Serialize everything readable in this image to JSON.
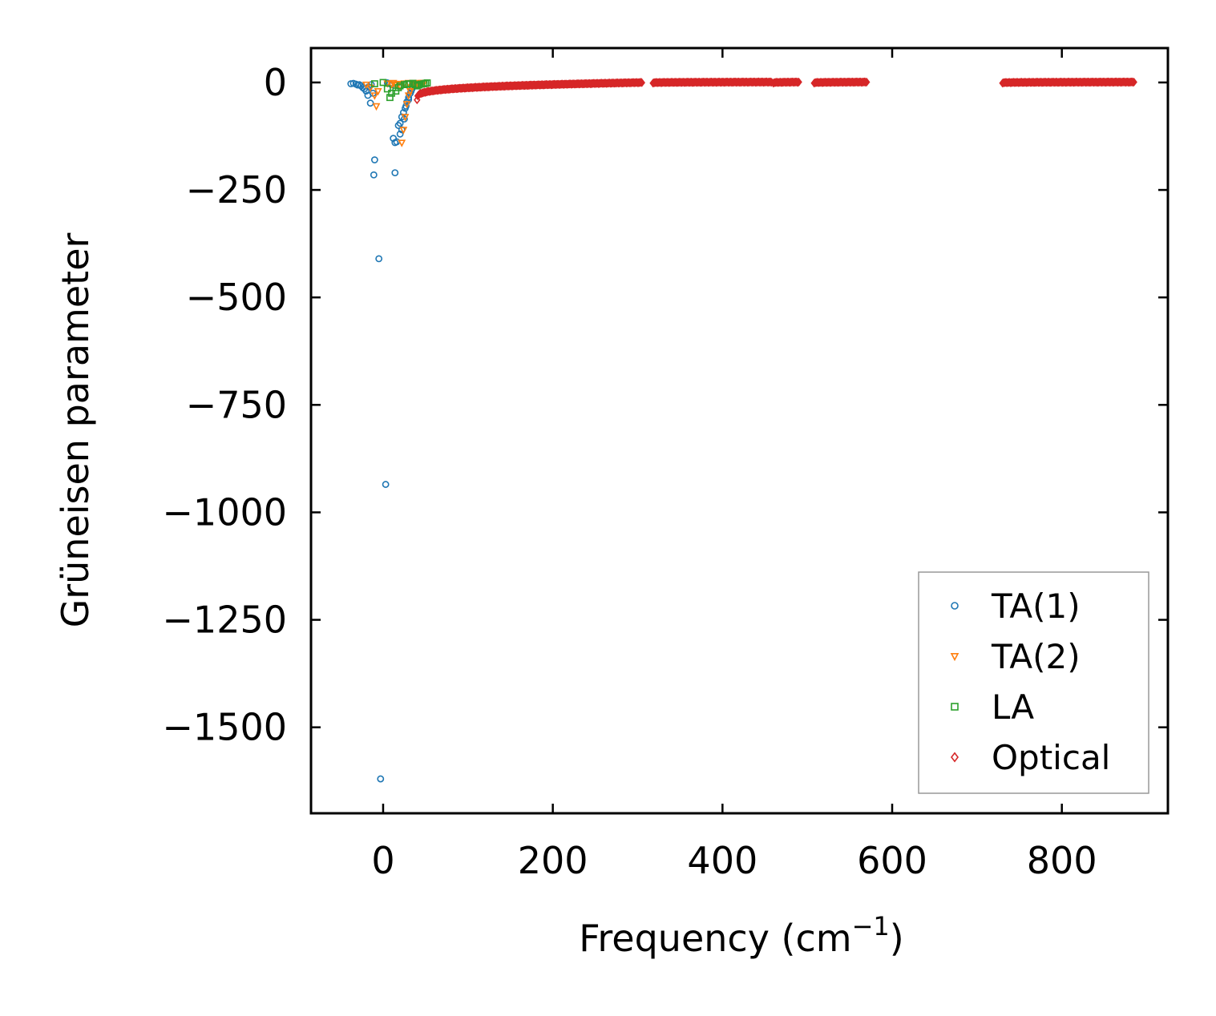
{
  "chart_data": {
    "type": "scatter",
    "title": "",
    "xlabel": "Frequency (cm",
    "xlabel_sup": "−1",
    "xlabel_close": ")",
    "ylabel": "Grüneisen parameter",
    "xlim": [
      -85,
      925
    ],
    "ylim": [
      -1700,
      80
    ],
    "x_ticks": [
      0,
      200,
      400,
      600,
      800
    ],
    "x_tick_labels": [
      "0",
      "200",
      "400",
      "600",
      "800"
    ],
    "y_ticks": [
      0,
      -250,
      -500,
      -750,
      -1000,
      -1250,
      -1500
    ],
    "y_tick_labels": [
      "0",
      "−250",
      "−500",
      "−750",
      "−1000",
      "−1250",
      "−1500"
    ],
    "grid": false,
    "legend_position": "bottom-right",
    "series": [
      {
        "name": "TA(1)",
        "marker": "circle",
        "color": "#1f77b4",
        "points": [
          [
            -38,
            -3
          ],
          [
            -35,
            -2
          ],
          [
            -32,
            -4
          ],
          [
            -30,
            -6
          ],
          [
            -28,
            -5
          ],
          [
            -26,
            -8
          ],
          [
            -24,
            -12
          ],
          [
            -22,
            -15
          ],
          [
            -20,
            -20
          ],
          [
            -18,
            -30
          ],
          [
            -17,
            -10
          ],
          [
            -15,
            -48
          ],
          [
            -14,
            -5
          ],
          [
            -12,
            -25
          ],
          [
            -10,
            -180
          ],
          [
            -11,
            -215
          ],
          [
            -5,
            -410
          ],
          [
            -3,
            -1620
          ],
          [
            3,
            -935
          ],
          [
            14,
            -210
          ],
          [
            12,
            -130
          ],
          [
            14,
            -140
          ],
          [
            16,
            -138
          ],
          [
            18,
            -100
          ],
          [
            20,
            -95
          ],
          [
            22,
            -80
          ],
          [
            24,
            -70
          ],
          [
            26,
            -60
          ],
          [
            28,
            -45
          ],
          [
            30,
            -35
          ],
          [
            32,
            -25
          ],
          [
            34,
            -15
          ],
          [
            35,
            -8
          ],
          [
            36,
            -4
          ],
          [
            38,
            -2
          ],
          [
            20,
            -120
          ],
          [
            22,
            -110
          ],
          [
            25,
            -85
          ],
          [
            27,
            -55
          ],
          [
            30,
            -40
          ],
          [
            33,
            -20
          ],
          [
            10,
            -5
          ],
          [
            8,
            -3
          ],
          [
            5,
            -1
          ]
        ]
      },
      {
        "name": "TA(2)",
        "marker": "triangle-down",
        "color": "#ff7f0e",
        "points": [
          [
            -20,
            -5
          ],
          [
            -15,
            -12
          ],
          [
            -10,
            -30
          ],
          [
            -8,
            -55
          ],
          [
            -6,
            -20
          ],
          [
            5,
            -2
          ],
          [
            10,
            -4
          ],
          [
            15,
            -6
          ],
          [
            18,
            -3
          ],
          [
            20,
            -8
          ],
          [
            22,
            -140
          ],
          [
            24,
            -110
          ],
          [
            26,
            -80
          ],
          [
            28,
            -50
          ],
          [
            30,
            -30
          ],
          [
            32,
            -20
          ],
          [
            34,
            -12
          ],
          [
            36,
            -6
          ],
          [
            38,
            -3
          ],
          [
            40,
            -2
          ],
          [
            42,
            -1
          ],
          [
            44,
            -2
          ],
          [
            46,
            -1
          ],
          [
            48,
            -1
          ],
          [
            12,
            -1
          ],
          [
            25,
            -2
          ],
          [
            30,
            -1
          ],
          [
            35,
            -1
          ]
        ]
      },
      {
        "name": "LA",
        "marker": "square",
        "color": "#2ca02c",
        "points": [
          [
            -10,
            -3
          ],
          [
            0,
            0
          ],
          [
            5,
            -15
          ],
          [
            8,
            -35
          ],
          [
            10,
            -25
          ],
          [
            15,
            -20
          ],
          [
            18,
            -12
          ],
          [
            20,
            -8
          ],
          [
            25,
            -5
          ],
          [
            28,
            -4
          ],
          [
            30,
            -3
          ],
          [
            35,
            -2
          ],
          [
            38,
            -5
          ],
          [
            40,
            -8
          ],
          [
            42,
            -6
          ],
          [
            45,
            -4
          ],
          [
            48,
            -3
          ],
          [
            50,
            -2
          ],
          [
            52,
            -1
          ]
        ]
      },
      {
        "name": "Optical",
        "marker": "diamond",
        "color": "#d62728",
        "segments": [
          {
            "x": [
              40,
              305
            ],
            "y": [
              -40,
              0
            ]
          },
          {
            "x": [
              318,
              458
            ],
            "y": [
              -1,
              1
            ]
          },
          {
            "x": [
              460,
              490
            ],
            "y": [
              -1,
              1
            ]
          },
          {
            "x": [
              508,
              570
            ],
            "y": [
              -1,
              1
            ]
          },
          {
            "x": [
              730,
              885
            ],
            "y": [
              -1,
              1
            ]
          }
        ]
      }
    ]
  }
}
